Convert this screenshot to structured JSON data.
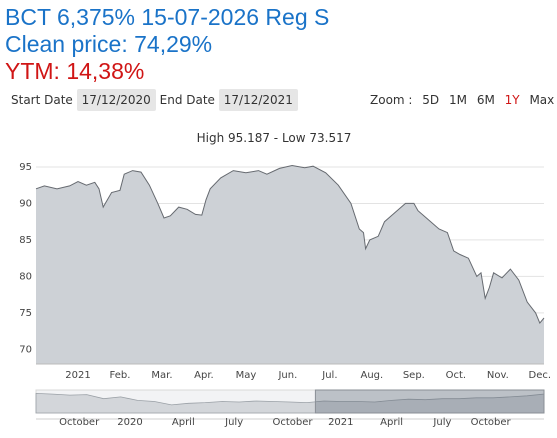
{
  "header": {
    "bond_name": "BCT 6,375% 15-07-2026 Reg S",
    "clean_price": "Clean price:  74,29%",
    "ytm": "YTM: 14,38%"
  },
  "controls": {
    "start_label": "Start Date",
    "start_value": "17/12/2020",
    "end_label": "End Date",
    "end_value": "17/12/2021",
    "zoom_label": "Zoom :",
    "zoom_options": [
      "5D",
      "1M",
      "6M",
      "1Y",
      "Max"
    ],
    "zoom_active": "1Y"
  },
  "colors": {
    "title_blue": "#1a73c8",
    "ytm_red": "#d01515",
    "area_fill": "#cdd1d6",
    "line": "#666a70"
  },
  "chart_data": {
    "type": "area",
    "title": "High 95.187 - Low 73.517",
    "ylim": [
      68,
      96.5
    ],
    "xlim": [
      -0.5,
      11.6
    ],
    "yticks": [
      70,
      75,
      80,
      85,
      90,
      95
    ],
    "xticks": [
      {
        "label": "2021",
        "x": 0.5
      },
      {
        "label": "Feb.",
        "x": 1.5
      },
      {
        "label": "Mar.",
        "x": 2.5
      },
      {
        "label": "Apr.",
        "x": 3.5
      },
      {
        "label": "May",
        "x": 4.5
      },
      {
        "label": "Jun.",
        "x": 5.5
      },
      {
        "label": "Jul.",
        "x": 6.5
      },
      {
        "label": "Aug.",
        "x": 7.5
      },
      {
        "label": "Sep.",
        "x": 8.5
      },
      {
        "label": "Oct.",
        "x": 9.5
      },
      {
        "label": "Nov.",
        "x": 10.5
      },
      {
        "label": "Dec.",
        "x": 11.5
      }
    ],
    "grid": true,
    "series": [
      {
        "values": [
          [
            -0.5,
            92.0
          ],
          [
            -0.3,
            92.4
          ],
          [
            0.0,
            92.0
          ],
          [
            0.3,
            92.4
          ],
          [
            0.5,
            93.0
          ],
          [
            0.7,
            92.5
          ],
          [
            0.9,
            92.9
          ],
          [
            1.0,
            92.0
          ],
          [
            1.1,
            89.5
          ],
          [
            1.15,
            90.0
          ],
          [
            1.3,
            91.5
          ],
          [
            1.5,
            91.8
          ],
          [
            1.6,
            94.0
          ],
          [
            1.8,
            94.5
          ],
          [
            2.0,
            94.3
          ],
          [
            2.2,
            92.5
          ],
          [
            2.4,
            90.0
          ],
          [
            2.55,
            88.0
          ],
          [
            2.7,
            88.3
          ],
          [
            2.9,
            89.5
          ],
          [
            3.1,
            89.2
          ],
          [
            3.3,
            88.5
          ],
          [
            3.45,
            88.4
          ],
          [
            3.55,
            90.5
          ],
          [
            3.65,
            92.0
          ],
          [
            3.9,
            93.5
          ],
          [
            4.2,
            94.5
          ],
          [
            4.5,
            94.2
          ],
          [
            4.8,
            94.5
          ],
          [
            5.0,
            94.0
          ],
          [
            5.3,
            94.8
          ],
          [
            5.6,
            95.2
          ],
          [
            5.9,
            94.9
          ],
          [
            6.1,
            95.1
          ],
          [
            6.4,
            94.2
          ],
          [
            6.7,
            92.5
          ],
          [
            7.0,
            90.0
          ],
          [
            7.2,
            86.5
          ],
          [
            7.3,
            86.0
          ],
          [
            7.35,
            83.8
          ],
          [
            7.45,
            85.0
          ],
          [
            7.65,
            85.5
          ],
          [
            7.8,
            87.5
          ],
          [
            8.0,
            88.5
          ],
          [
            8.3,
            90.0
          ],
          [
            8.5,
            90.0
          ],
          [
            8.6,
            89.0
          ],
          [
            8.8,
            88.0
          ],
          [
            9.1,
            86.5
          ],
          [
            9.3,
            86.0
          ],
          [
            9.45,
            83.5
          ],
          [
            9.6,
            83.0
          ],
          [
            9.8,
            82.5
          ],
          [
            10.0,
            80.0
          ],
          [
            10.1,
            80.5
          ],
          [
            10.2,
            77.0
          ],
          [
            10.3,
            78.5
          ],
          [
            10.4,
            80.5
          ],
          [
            10.6,
            79.8
          ],
          [
            10.8,
            81.0
          ],
          [
            11.0,
            79.5
          ],
          [
            11.2,
            76.5
          ],
          [
            11.4,
            75.0
          ],
          [
            11.5,
            73.6
          ],
          [
            11.6,
            74.3
          ]
        ]
      }
    ],
    "navigator": {
      "labels": [
        {
          "label": "October",
          "x": 0.085
        },
        {
          "label": "2020",
          "x": 0.185
        },
        {
          "label": "April",
          "x": 0.29
        },
        {
          "label": "July",
          "x": 0.39
        },
        {
          "label": "October",
          "x": 0.505
        },
        {
          "label": "2021",
          "x": 0.6
        },
        {
          "label": "April",
          "x": 0.7
        },
        {
          "label": "July",
          "x": 0.8
        },
        {
          "label": "October",
          "x": 0.895
        }
      ],
      "selected_range": [
        0.55,
        1.0
      ]
    }
  }
}
